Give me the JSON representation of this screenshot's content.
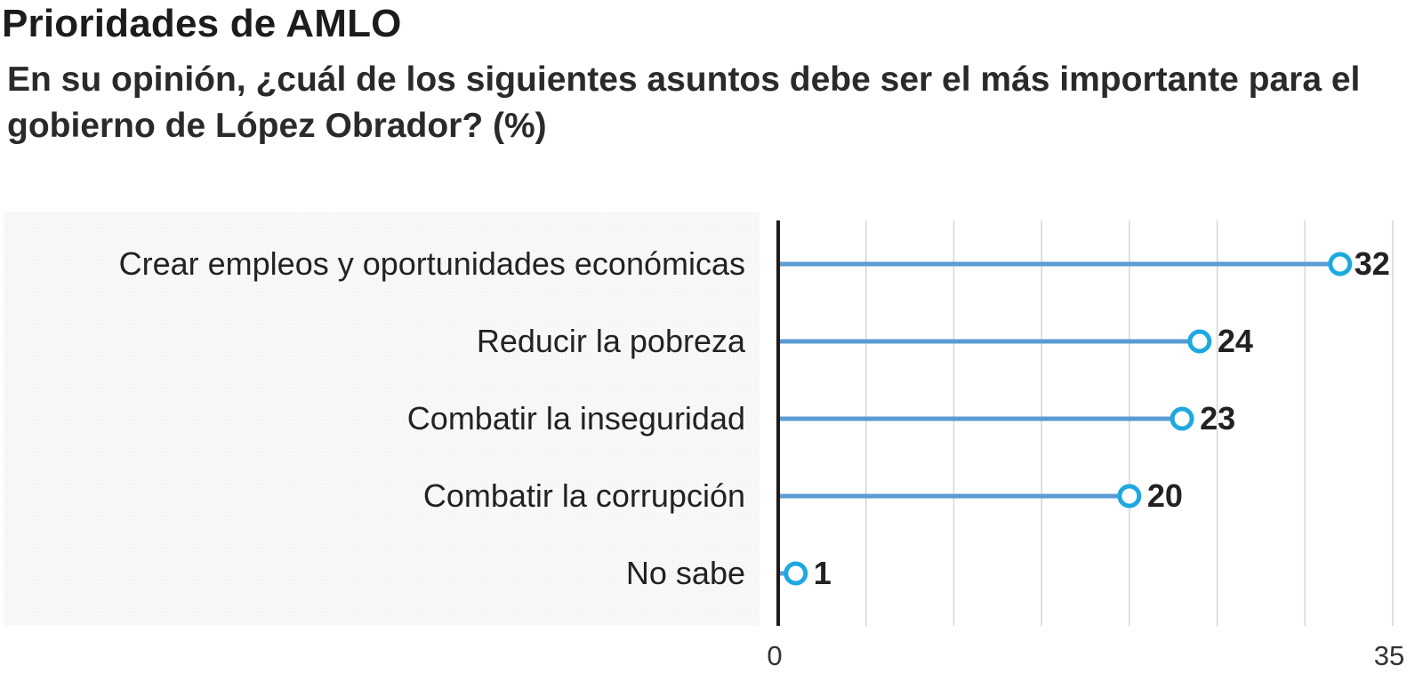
{
  "chart_data": {
    "type": "lollipop",
    "title": "Prioridades de AMLO",
    "subtitle": "En su opinión, ¿cuál de los siguientes asuntos debe ser el más importante para el gobierno de López Obrador? (%)",
    "categories": [
      "Crear empleos y oportunidades económicas",
      "Reducir la pobreza",
      "Combatir la inseguridad",
      "Combatir la corrupción",
      "No sabe"
    ],
    "values": [
      32,
      24,
      23,
      20,
      1
    ],
    "value_labels": [
      "32",
      "24",
      "23",
      "20",
      "1"
    ],
    "xlim": [
      0,
      35
    ],
    "x_ticks": [
      0,
      35
    ],
    "x_tick_labels": [
      "0",
      "35"
    ],
    "gridlines": [
      5,
      10,
      15,
      20,
      25,
      30,
      35
    ],
    "grid": true,
    "colors": {
      "line": "#5b9bd5",
      "marker": "#1ea8e0",
      "axis": "#1c1c1c",
      "grid": "#d6d6d6",
      "label_panel": "#f7f7f7"
    }
  }
}
